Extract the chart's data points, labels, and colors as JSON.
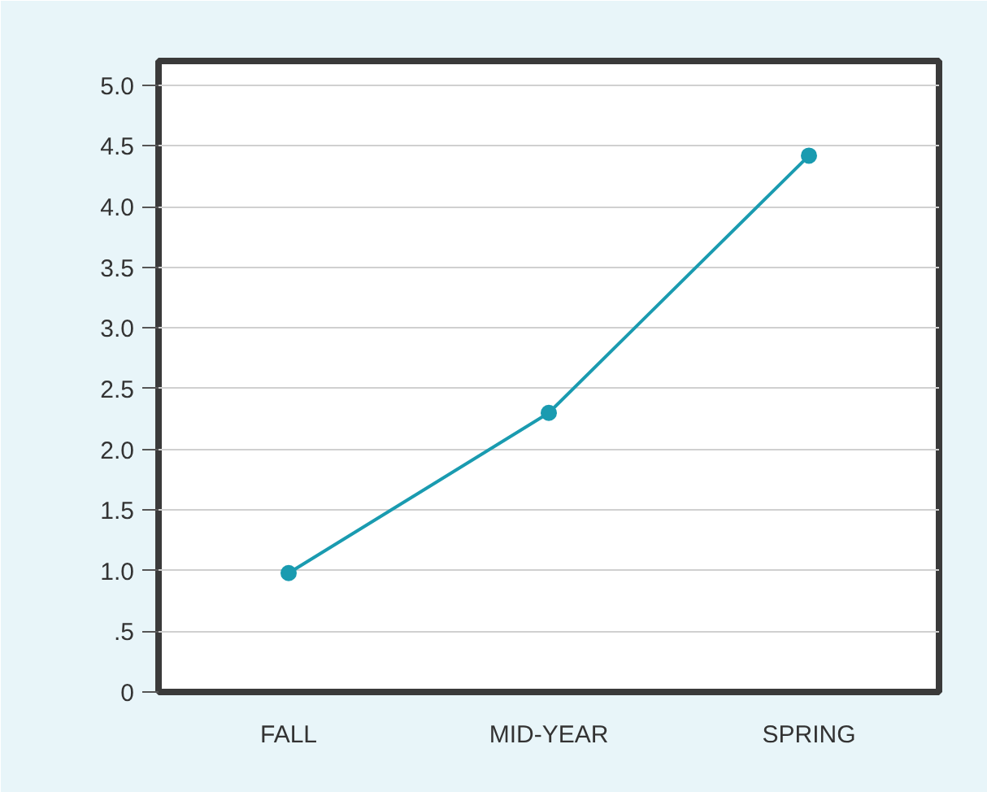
{
  "chart_data": {
    "type": "line",
    "categories": [
      "FALL",
      "MID-YEAR",
      "SPRING"
    ],
    "series": [
      {
        "color": "#1a9bb0",
        "values": [
          0.98,
          2.3,
          4.42
        ]
      }
    ],
    "ylim": [
      0,
      5.2
    ],
    "yticks": [
      0,
      {
        "value": 0.5,
        "label": ".5"
      },
      {
        "value": 1,
        "label": "1.0"
      },
      {
        "value": 1.5,
        "label": "1.5"
      },
      {
        "value": 2,
        "label": "2.0"
      },
      {
        "value": 2.5,
        "label": "2.5"
      },
      {
        "value": 3,
        "label": "3.0"
      },
      {
        "value": 3.5,
        "label": "3.5"
      },
      {
        "value": 4,
        "label": "4.0"
      },
      {
        "value": 4.5,
        "label": "4.5"
      },
      {
        "value": 5,
        "label": "5.0"
      }
    ],
    "grid": "y",
    "marker": "circle",
    "line_style": "solid"
  }
}
